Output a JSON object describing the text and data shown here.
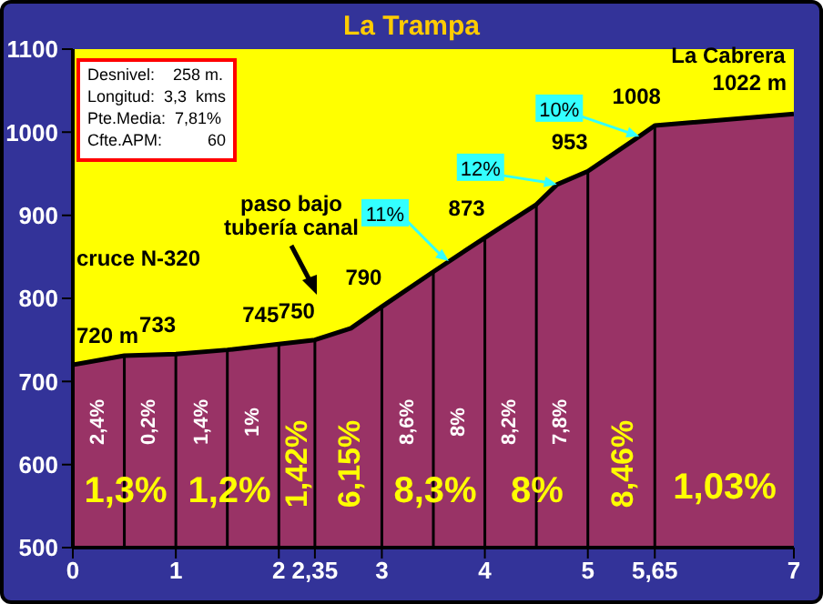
{
  "chart_data": {
    "type": "area",
    "title": "La Trampa",
    "x": [
      0,
      0.5,
      1,
      1.5,
      2,
      2.35,
      2.7,
      3,
      3.5,
      4,
      4.5,
      4.7,
      5,
      5.5,
      5.65,
      7
    ],
    "series": [
      {
        "color": "#993366",
        "values": [
          720,
          731,
          733,
          738,
          745,
          750,
          764,
          790,
          832,
          873,
          913,
          937,
          953,
          995,
          1008,
          1022
        ],
        "value_labels": [
          "720 m",
          null,
          "733",
          null,
          "745",
          "750",
          null,
          "790",
          null,
          "873",
          null,
          null,
          "953",
          null,
          "1008",
          "1022 m"
        ]
      }
    ],
    "xlim": [
      0,
      7
    ],
    "xticks": [
      0,
      1,
      2,
      {
        "value": 2.35,
        "label": "2,35"
      },
      3,
      4,
      5,
      {
        "value": 5.65,
        "label": "5,65"
      },
      7
    ],
    "ylim": [
      500,
      1100
    ],
    "yticks": [
      500,
      600,
      700,
      800,
      900,
      1000,
      1100
    ],
    "ref_lines": [
      {
        "axis": "x",
        "value": 0.5,
        "label": null
      },
      {
        "axis": "x",
        "value": 1,
        "label": null
      },
      {
        "axis": "x",
        "value": 1.5,
        "label": null
      },
      {
        "axis": "x",
        "value": 2,
        "label": null
      },
      {
        "axis": "x",
        "value": 2.35,
        "label": null
      },
      {
        "axis": "x",
        "value": 3,
        "label": null
      },
      {
        "axis": "x",
        "value": 3.5,
        "label": null
      },
      {
        "axis": "x",
        "value": 4,
        "label": null
      },
      {
        "axis": "x",
        "value": 4.5,
        "label": null
      },
      {
        "axis": "x",
        "value": 5,
        "label": null
      },
      {
        "axis": "x",
        "value": 5.65,
        "label": null
      }
    ],
    "annotations": [
      "Desnivel:    258 m.",
      "Longitud:  3,3  kms",
      "Pte.Media:  7,81%",
      "Cfte.APM:          60",
      "cruce N-320",
      "paso bajo tubería canal",
      {
        "text": "11%",
        "x": 3.65,
        "y": 845
      },
      {
        "text": "12%",
        "x": 4.7,
        "y": 937
      },
      {
        "text": "10%",
        "x": 5.5,
        "y": 995
      },
      {
        "text": "La Cabrera",
        "x": 7,
        "y": 1022
      },
      "2,4%",
      "0,2%",
      "1,4%",
      "1%",
      "8,6%",
      "8%",
      "8,2%",
      "7,8%",
      "1,3%",
      "1,2%",
      "1,42%",
      "6,15%",
      "8,3%",
      "8%",
      "8,46%",
      "1,03%"
    ],
    "grid": false
  }
}
